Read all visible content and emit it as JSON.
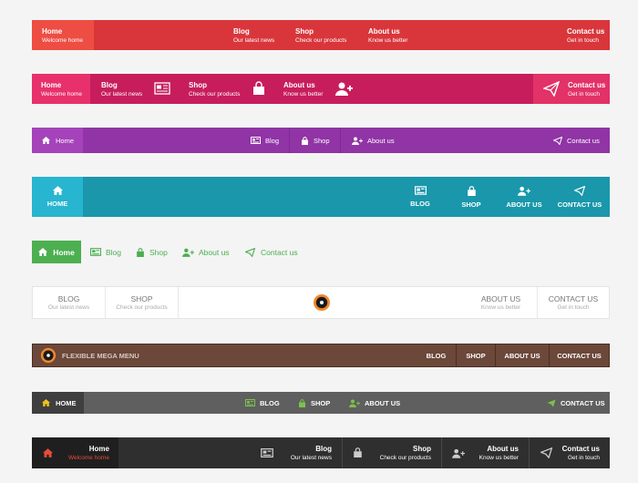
{
  "bar1": {
    "items": [
      {
        "title": "Home",
        "sub": "Welcome home"
      },
      {
        "title": "Blog",
        "sub": "Our latest news"
      },
      {
        "title": "Shop",
        "sub": "Check our products"
      },
      {
        "title": "About us",
        "sub": "Know us better"
      },
      {
        "title": "Contact us",
        "sub": "Get in touch"
      }
    ]
  },
  "bar2": {
    "items": [
      {
        "title": "Home",
        "sub": "Welcome home"
      },
      {
        "title": "Blog",
        "sub": "Our latest news"
      },
      {
        "title": "Shop",
        "sub": "Check our products"
      },
      {
        "title": "About us",
        "sub": "Know us better"
      },
      {
        "title": "Contact us",
        "sub": "Get in touch"
      }
    ]
  },
  "bar3": {
    "items": [
      {
        "title": "Home"
      },
      {
        "title": "Blog"
      },
      {
        "title": "Shop"
      },
      {
        "title": "About us"
      },
      {
        "title": "Contact us"
      }
    ]
  },
  "bar4": {
    "items": [
      {
        "title": "HOME"
      },
      {
        "title": "BLOG"
      },
      {
        "title": "SHOP"
      },
      {
        "title": "ABOUT US"
      },
      {
        "title": "CONTACT US"
      }
    ]
  },
  "bar5": {
    "items": [
      {
        "title": "Home"
      },
      {
        "title": "Blog"
      },
      {
        "title": "Shop"
      },
      {
        "title": "About us"
      },
      {
        "title": "Contact us"
      }
    ]
  },
  "bar6": {
    "items": [
      {
        "title": "BLOG",
        "sub": "Our latest news"
      },
      {
        "title": "SHOP",
        "sub": "Check our products"
      },
      {
        "title": "ABOUT US",
        "sub": "Know us better"
      },
      {
        "title": "CONTACT US",
        "sub": "Get in touch"
      }
    ]
  },
  "bar7": {
    "brand": "FLEXIBLE MEGA MENU",
    "items": [
      {
        "title": "BLOG"
      },
      {
        "title": "SHOP"
      },
      {
        "title": "ABOUT US"
      },
      {
        "title": "CONTACT US"
      }
    ]
  },
  "bar8": {
    "items": [
      {
        "title": "HOME"
      },
      {
        "title": "BLOG"
      },
      {
        "title": "SHOP"
      },
      {
        "title": "ABOUT US"
      },
      {
        "title": "CONTACT US"
      }
    ]
  },
  "bar9": {
    "items": [
      {
        "title": "Home",
        "sub": "Welcome home"
      },
      {
        "title": "Blog",
        "sub": "Our latest news"
      },
      {
        "title": "Shop",
        "sub": "Check our products"
      },
      {
        "title": "About us",
        "sub": "Know us better"
      },
      {
        "title": "Contact us",
        "sub": "Get in touch"
      }
    ]
  },
  "colors": {
    "red": "#d9363b",
    "pink": "#c71d5c",
    "purple": "#9134a6",
    "teal": "#1a97ab",
    "green": "#4caf50",
    "brown": "#6b4839",
    "gray": "#5f5f5f",
    "dark": "#2f2f2f",
    "orange_accent": "#f0882b"
  }
}
